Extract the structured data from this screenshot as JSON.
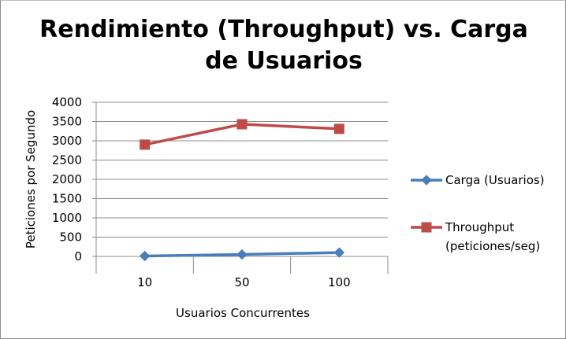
{
  "chart_data": {
    "type": "line",
    "title": "Rendimiento (Throughput) vs. Carga de Usuarios",
    "title_lines": [
      "Rendimiento (Throughput) vs. Carga",
      "de Usuarios"
    ],
    "xlabel": "Usuarios Concurrentes",
    "ylabel": "Peticiones por Segundo",
    "categories": [
      "10",
      "50",
      "100"
    ],
    "ylim": [
      0,
      4000
    ],
    "yticks": [
      0,
      500,
      1000,
      1500,
      2000,
      2500,
      3000,
      3500,
      4000
    ],
    "grid": "horizontal",
    "legend_position": "right",
    "series": [
      {
        "name": "Carga (Usuarios)",
        "legend_lines": [
          "Carga (Usuarios)"
        ],
        "values": [
          10,
          50,
          100
        ],
        "color": "#4a7ebb",
        "marker": "diamond"
      },
      {
        "name": "Throughput (peticiones/seg)",
        "legend_lines": [
          "Throughput",
          "(peticiones/seg)"
        ],
        "values": [
          2900,
          3430,
          3310
        ],
        "color": "#be4b48",
        "marker": "square"
      }
    ]
  }
}
